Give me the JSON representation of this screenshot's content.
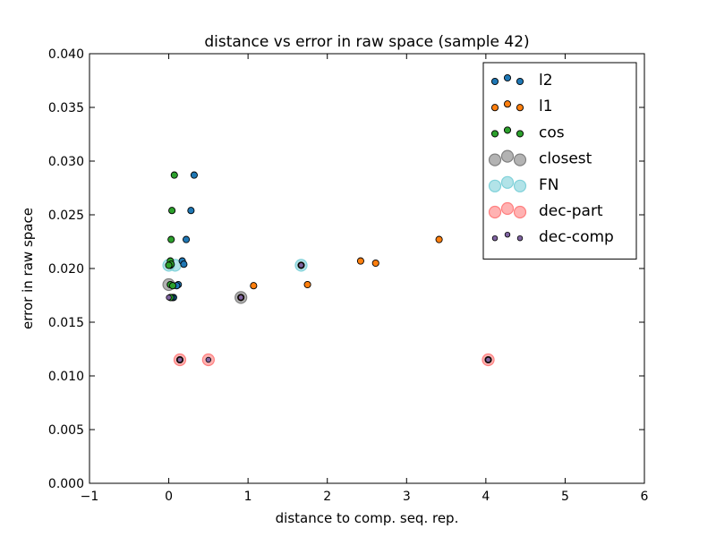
{
  "chart_data": {
    "type": "scatter",
    "title": "distance vs error in raw space (sample 42)",
    "xlabel": "distance to comp. seq. rep.",
    "ylabel": "error in raw space",
    "xlim": [
      -1,
      6
    ],
    "ylim": [
      0,
      0.04
    ],
    "xticks": [
      -1,
      0,
      1,
      2,
      3,
      4,
      5,
      6
    ],
    "xtick_labels": [
      "−1",
      "0",
      "1",
      "2",
      "3",
      "4",
      "5",
      "6"
    ],
    "yticks": [
      0,
      0.005,
      0.01,
      0.015,
      0.02,
      0.025,
      0.03,
      0.035,
      0.04
    ],
    "ytick_labels": [
      "0.000",
      "0.005",
      "0.010",
      "0.015",
      "0.020",
      "0.025",
      "0.030",
      "0.035",
      "0.040"
    ],
    "grid": false,
    "legend_position": "top-right",
    "series": [
      {
        "name": "l2",
        "color": "#1f77b4",
        "marker": "small",
        "points": [
          [
            0.32,
            0.0287
          ],
          [
            0.28,
            0.0254
          ],
          [
            0.22,
            0.0227
          ],
          [
            0.17,
            0.0207
          ],
          [
            0.19,
            0.0204
          ],
          [
            0.12,
            0.0185
          ],
          [
            0.1,
            0.0184
          ],
          [
            0.06,
            0.0173
          ],
          [
            0.04,
            0.0173
          ],
          [
            0.02,
            0.0203
          ]
        ]
      },
      {
        "name": "l1",
        "color": "#ff7f0e",
        "marker": "small",
        "points": [
          [
            3.41,
            0.0227
          ],
          [
            2.42,
            0.0207
          ],
          [
            2.61,
            0.0205
          ],
          [
            1.07,
            0.0184
          ],
          [
            1.75,
            0.0185
          ],
          [
            0.91,
            0.0173
          ],
          [
            1.67,
            0.0203
          ],
          [
            0.14,
            0.0115
          ],
          [
            4.03,
            0.0115
          ]
        ]
      },
      {
        "name": "cos",
        "color": "#2ca02c",
        "marker": "small",
        "points": [
          [
            0.07,
            0.0287
          ],
          [
            0.04,
            0.0254
          ],
          [
            0.03,
            0.0227
          ],
          [
            0.02,
            0.0207
          ],
          [
            0.03,
            0.0204
          ],
          [
            0.02,
            0.0185
          ],
          [
            0.05,
            0.0184
          ],
          [
            0.02,
            0.0173
          ],
          [
            0.0,
            0.0203
          ]
        ]
      },
      {
        "name": "closest",
        "color": "#808080",
        "marker": "large",
        "points": [
          [
            0.0,
            0.0185
          ],
          [
            0.91,
            0.0173
          ]
        ]
      },
      {
        "name": "FN",
        "color": "#7fd1d9",
        "marker": "large",
        "points": [
          [
            0.0,
            0.0203
          ],
          [
            1.67,
            0.0203
          ],
          [
            0.08,
            0.0203
          ]
        ]
      },
      {
        "name": "dec-part",
        "color": "#ff7f7f",
        "marker": "large",
        "points": [
          [
            0.14,
            0.0115
          ],
          [
            0.5,
            0.0115
          ],
          [
            4.03,
            0.0115
          ]
        ]
      },
      {
        "name": "dec-comp",
        "color": "#8064a2",
        "marker": "tiny",
        "points": [
          [
            0.0,
            0.0173
          ],
          [
            0.14,
            0.0115
          ],
          [
            0.5,
            0.0115
          ],
          [
            4.03,
            0.0115
          ],
          [
            1.67,
            0.0203
          ],
          [
            0.91,
            0.0173
          ]
        ]
      }
    ]
  }
}
